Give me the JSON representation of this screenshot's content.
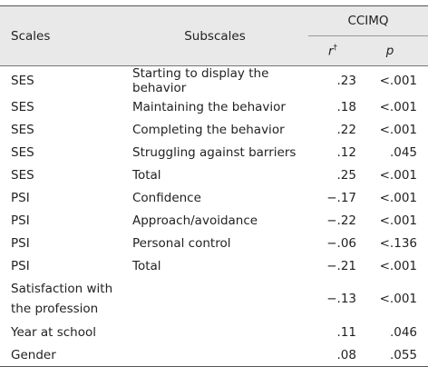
{
  "table": {
    "header": {
      "scales": "Scales",
      "subscales": "Subscales",
      "group": "CCIMQ",
      "r": "r",
      "r_mark": "†",
      "p": "p"
    },
    "rows": [
      [
        "SES",
        "Starting to display the behavior",
        ".23",
        "<.001"
      ],
      [
        "SES",
        "Maintaining the behavior",
        ".18",
        "<.001"
      ],
      [
        "SES",
        "Completing the behavior",
        ".22",
        "<.001"
      ],
      [
        "SES",
        "Struggling against barriers",
        ".12",
        ".045"
      ],
      [
        "SES",
        "Total",
        ".25",
        "<.001"
      ],
      [
        "PSI",
        "Confidence",
        "−.17",
        "<.001"
      ],
      [
        "PSI",
        "Approach/avoidance",
        "−.22",
        "<.001"
      ],
      [
        "PSI",
        "Personal control",
        "−.06",
        "<.136"
      ],
      [
        "PSI",
        "Total",
        "−.21",
        "<.001"
      ],
      [
        "Satisfaction with the profession",
        null,
        "−.13",
        "<.001"
      ],
      [
        "Year at school",
        null,
        ".11",
        ".046"
      ],
      [
        "Gender",
        null,
        ".08",
        ".055"
      ]
    ]
  }
}
